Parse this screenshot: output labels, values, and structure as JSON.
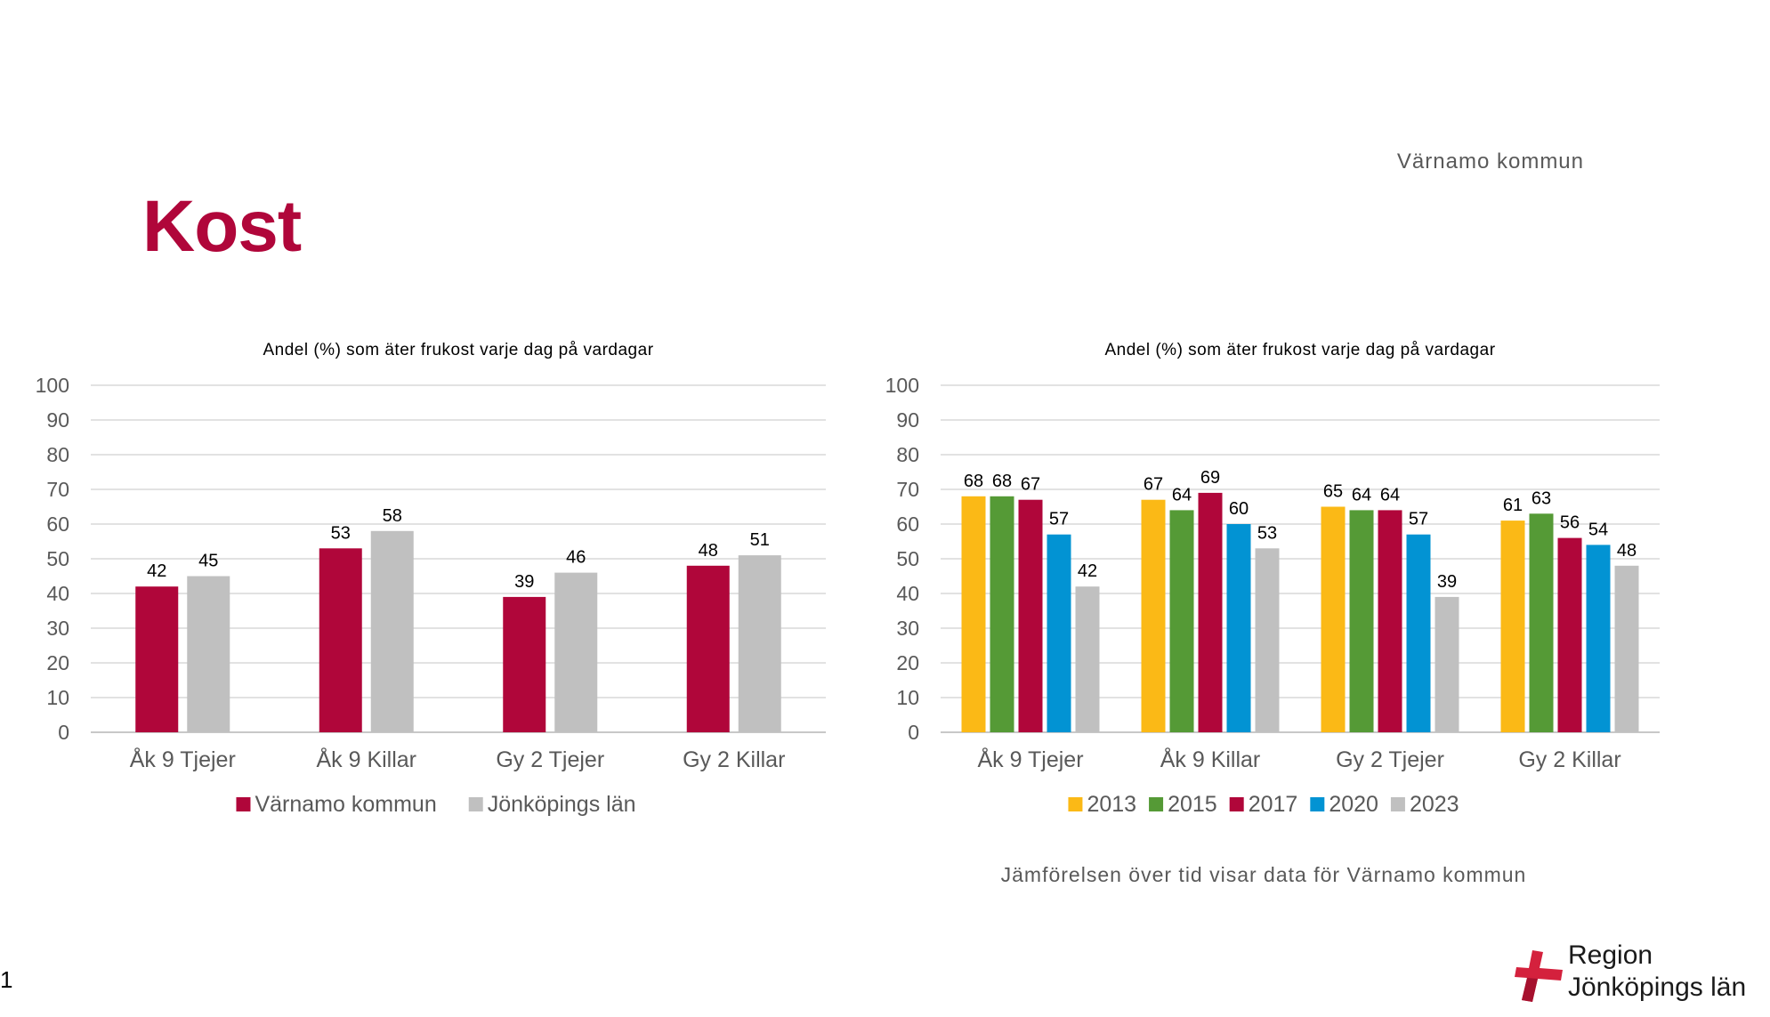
{
  "header": {
    "kommun": "Värnamo kommun",
    "title": "Kost"
  },
  "footnote": "Jämförelsen över tid visar data för Värnamo kommun",
  "page_number": "1",
  "logo": {
    "line1": "Region",
    "line2": "Jönköpings län"
  },
  "chart_data": [
    {
      "type": "bar",
      "title": "Andel (%) som äter frukost varje dag på vardagar",
      "categories": [
        "Åk 9 Tjejer",
        "Åk 9 Killar",
        "Gy 2 Tjejer",
        "Gy 2 Killar"
      ],
      "ylim": [
        0,
        100
      ],
      "yticks": [
        0,
        10,
        20,
        30,
        40,
        50,
        60,
        70,
        80,
        90,
        100
      ],
      "grid": true,
      "legend": "bottom",
      "series": [
        {
          "name": "Värnamo kommun",
          "color": "#b0063a",
          "values": [
            42,
            53,
            39,
            48
          ]
        },
        {
          "name": "Jönköpings län",
          "color": "#c0c0c0",
          "values": [
            45,
            58,
            46,
            51
          ]
        }
      ]
    },
    {
      "type": "bar",
      "title": "Andel (%) som äter frukost varje dag på vardagar",
      "categories": [
        "Åk 9 Tjejer",
        "Åk 9 Killar",
        "Gy 2 Tjejer",
        "Gy 2 Killar"
      ],
      "ylim": [
        0,
        100
      ],
      "yticks": [
        0,
        10,
        20,
        30,
        40,
        50,
        60,
        70,
        80,
        90,
        100
      ],
      "grid": true,
      "legend": "bottom",
      "series": [
        {
          "name": "2013",
          "color": "#fbb916",
          "values": [
            68,
            67,
            65,
            61
          ]
        },
        {
          "name": "2015",
          "color": "#559a36",
          "values": [
            68,
            64,
            64,
            63
          ]
        },
        {
          "name": "2017",
          "color": "#b0063a",
          "values": [
            67,
            69,
            64,
            56
          ]
        },
        {
          "name": "2020",
          "color": "#0293d3",
          "values": [
            57,
            60,
            57,
            54
          ]
        },
        {
          "name": "2023",
          "color": "#c0c0c0",
          "values": [
            42,
            53,
            39,
            48
          ]
        }
      ]
    }
  ]
}
